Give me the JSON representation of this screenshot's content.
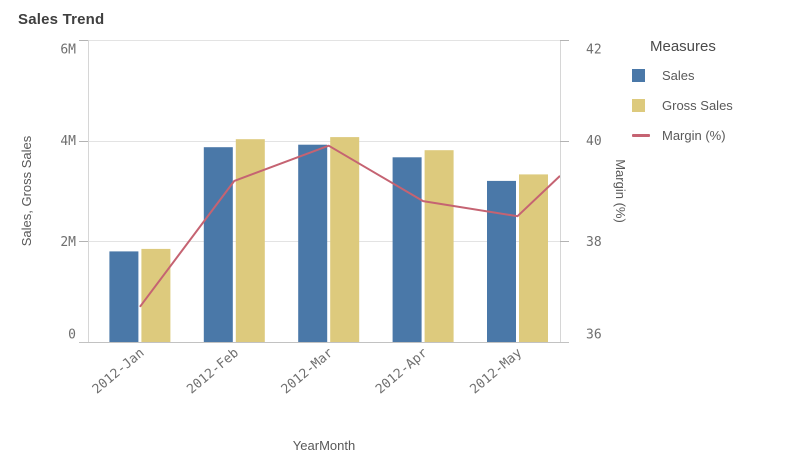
{
  "title": "Sales Trend",
  "legend": {
    "title": "Measures",
    "items": [
      {
        "label": "Sales",
        "swatch": "square",
        "color": "#4a78a8"
      },
      {
        "label": "Gross Sales",
        "swatch": "square",
        "color": "#ddca7d"
      },
      {
        "label": "Margin (%)",
        "swatch": "line",
        "color": "#c56372"
      }
    ]
  },
  "chart_data": {
    "type": "combo-bar-line",
    "title": "Sales Trend",
    "categories": [
      "2012-Jan",
      "2012-Feb",
      "2012-Mar",
      "2012-Apr",
      "2012-May"
    ],
    "series": [
      {
        "name": "Sales",
        "type": "bar",
        "axis": "left",
        "color": "#4a78a8",
        "values_millions": [
          1.8,
          3.87,
          3.92,
          3.67,
          3.2
        ]
      },
      {
        "name": "Gross Sales",
        "type": "bar",
        "axis": "left",
        "color": "#ddca7d",
        "values_millions": [
          1.85,
          4.03,
          4.07,
          3.81,
          3.33
        ]
      },
      {
        "name": "Margin (%)",
        "type": "line",
        "axis": "right",
        "color": "#c56372",
        "values_percent": [
          36.7,
          39.2,
          39.9,
          38.8,
          38.5
        ],
        "right_edge_value_percent": 39.3
      }
    ],
    "x_axis": {
      "title": "YearMonth"
    },
    "y_axis_left": {
      "title": "Sales, Gross Sales",
      "min_millions": 0,
      "max_millions": 6,
      "tick_values_millions": [
        0,
        2,
        4,
        6
      ],
      "tick_labels": [
        "0",
        "2M",
        "4M",
        "6M"
      ]
    },
    "y_axis_right": {
      "title": "Margin (%)",
      "min": 36,
      "max": 42,
      "tick_values": [
        36,
        38,
        40,
        42
      ],
      "tick_labels": [
        "36",
        "38",
        "40",
        "42"
      ]
    },
    "grid": true,
    "legend_position": "right"
  },
  "colors": {
    "grid": "#e3e3e3",
    "axis_line": "#d6d6d6",
    "tick_mark": "#b3b3b3",
    "baseline": "#c2c2c2",
    "tick_label": "#6f6f6f",
    "axis_title": "#595959",
    "chart_title": "#3f3f3f"
  }
}
